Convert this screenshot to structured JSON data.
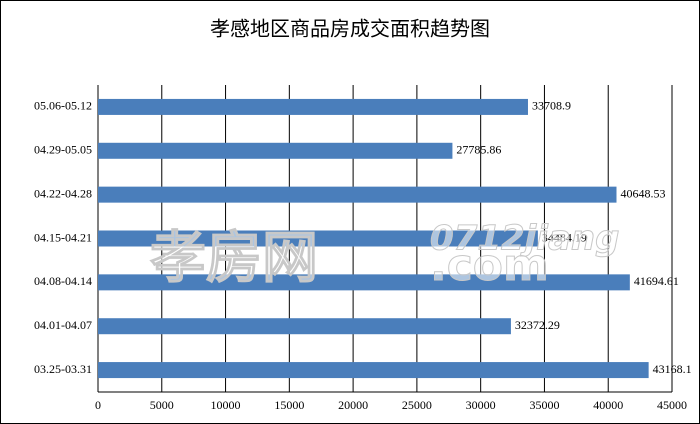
{
  "chart_data": {
    "type": "barh",
    "title": "孝感地区商品房成交面积趋势图",
    "categories": [
      "05.06-05.12",
      "04.29-05.05",
      "04.22-04.28",
      "04.15-04.21",
      "04.08-04.14",
      "04.01-04.07",
      "03.25-03.31"
    ],
    "values": [
      33708.9,
      27785.86,
      40648.53,
      34484.19,
      41694.61,
      32372.29,
      43168.1
    ],
    "color": "#4a7ebb",
    "xlim": [
      0,
      45000
    ],
    "xticks": [
      0,
      5000,
      10000,
      15000,
      20000,
      25000,
      30000,
      35000,
      40000,
      45000
    ],
    "grid": true
  },
  "watermark": [
    "孝房网",
    "0712jiang",
    ".com"
  ]
}
